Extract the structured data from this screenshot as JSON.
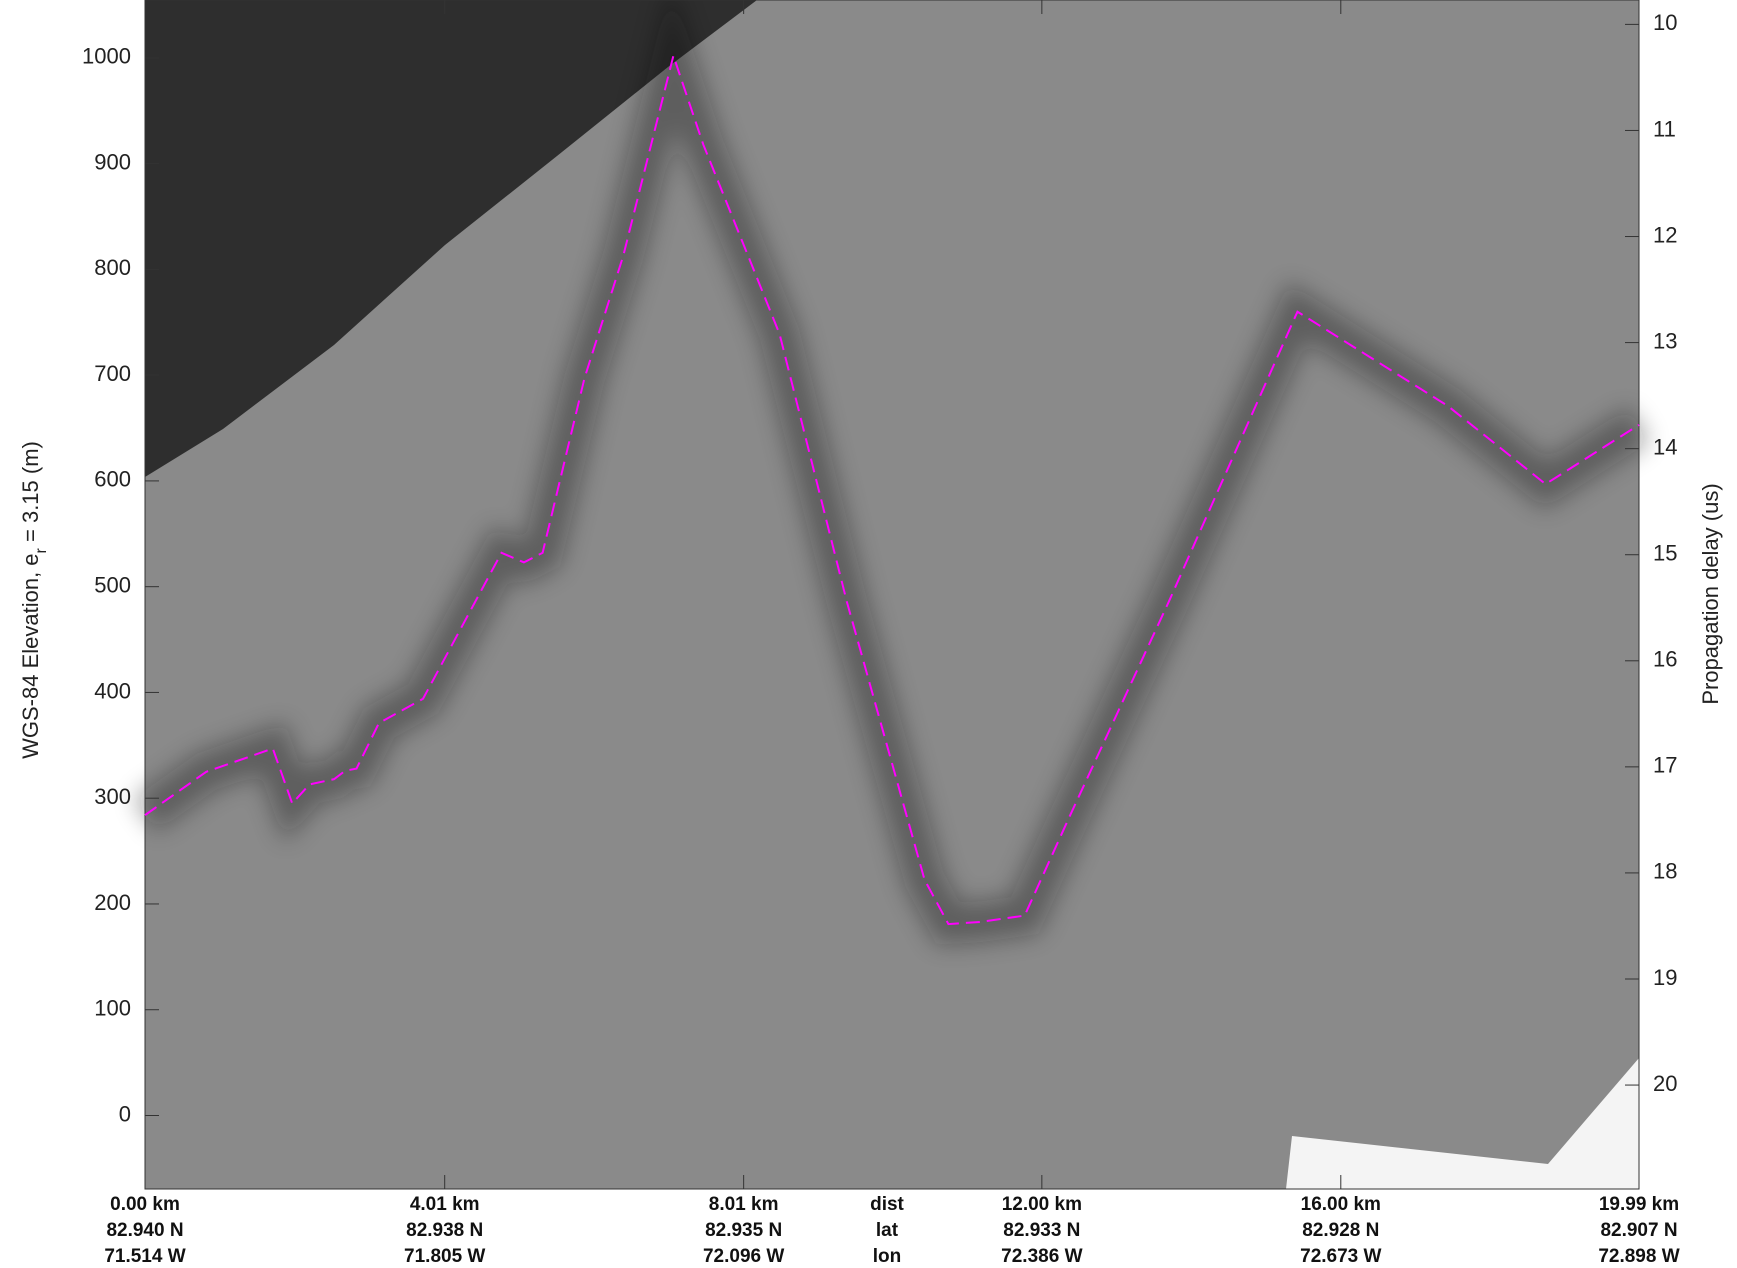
{
  "chart_data": {
    "type": "line",
    "ylabel": [
      "WGS-84 Elevation, e",
      "r",
      " = 3.15 (m)"
    ],
    "y2label": "Propagation delay (us)",
    "xlim": [
      0,
      19.99
    ],
    "xticks": [
      {
        "value": 0,
        "label": "0.00 km"
      },
      {
        "value": 4.01,
        "label": "4.01 km"
      },
      {
        "value": 8.01,
        "label": "8.01 km"
      },
      {
        "value": 12.0,
        "label": "12.00 km"
      },
      {
        "value": 16.0,
        "label": "16.00 km"
      },
      {
        "value": 19.99,
        "label": "19.99 km"
      }
    ],
    "xtick_lat": [
      "82.940 N",
      "82.938 N",
      "82.935 N",
      "82.933 N",
      "82.928 N",
      "82.907 N"
    ],
    "xtick_lon": [
      "71.514 W",
      "71.805 W",
      "72.096 W",
      "72.386 W",
      "72.673 W",
      "72.898 W"
    ],
    "row_labels": [
      "dist",
      "lat",
      "lon"
    ],
    "ylim": [
      -69.5,
      1054.7
    ],
    "yticks": [
      0,
      100,
      200,
      300,
      400,
      500,
      600,
      700,
      800,
      900,
      1000
    ],
    "y2lim": [
      20.98,
      9.77
    ],
    "y2ticks": [
      10,
      11,
      12,
      13,
      14,
      15,
      16,
      17,
      18,
      19,
      20
    ],
    "line_style": "dashed",
    "series": [
      {
        "color": "#ff00ff",
        "x": [
          0,
          0.82,
          1.71,
          1.97,
          2.2,
          2.53,
          2.68,
          2.83,
          3.13,
          3.72,
          4.77,
          5.07,
          5.32,
          5.88,
          6.4,
          7.07,
          7.47,
          8.49,
          9.39,
          10.43,
          10.75,
          11.17,
          11.77,
          12.36,
          13.7,
          15.42,
          17.43,
          18.74,
          19.99
        ],
        "values": [
          284,
          325,
          347,
          295,
          313,
          318,
          326,
          328,
          371,
          394,
          532,
          523,
          532,
          697,
          813,
          1002,
          918,
          739,
          486,
          223,
          181,
          183,
          189,
          281,
          486,
          760,
          671,
          597,
          653
        ]
      }
    ]
  }
}
